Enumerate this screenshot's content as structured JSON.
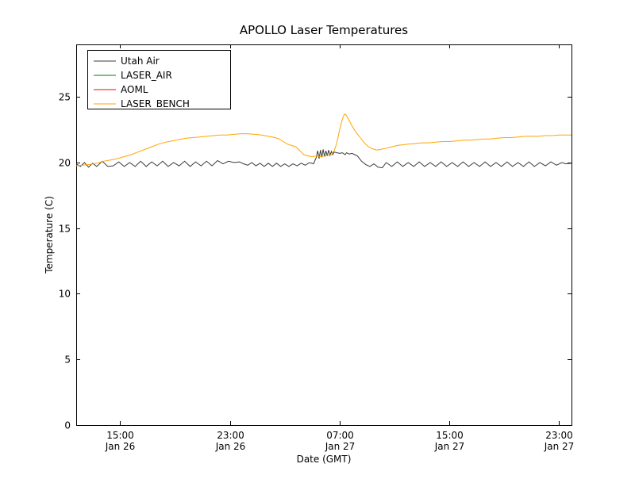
{
  "chart_data": {
    "type": "line",
    "title": "APOLLO Laser Temperatures",
    "xlabel": "Date (GMT)",
    "ylabel": "Temperature (C)",
    "x_unit": "hours since Jan 26 00:00 GMT",
    "xlim": [
      11.8,
      47.9
    ],
    "ylim": [
      0,
      29
    ],
    "grid": false,
    "legend_position": "upper left",
    "x_ticks": [
      {
        "value": 15,
        "time": "15:00",
        "date": "Jan 26"
      },
      {
        "value": 23,
        "time": "23:00",
        "date": "Jan 26"
      },
      {
        "value": 31,
        "time": "07:00",
        "date": "Jan 27"
      },
      {
        "value": 39,
        "time": "15:00",
        "date": "Jan 27"
      },
      {
        "value": 47,
        "time": "23:00",
        "date": "Jan 27"
      }
    ],
    "y_ticks": [
      0,
      5,
      10,
      15,
      20,
      25
    ],
    "series": [
      {
        "name": "Utah Air",
        "color": "#3b3b3b",
        "points": [
          [
            11.8,
            19.9
          ],
          [
            12.1,
            19.7
          ],
          [
            12.4,
            20.0
          ],
          [
            12.7,
            19.65
          ],
          [
            13.0,
            19.95
          ],
          [
            13.3,
            19.7
          ],
          [
            13.7,
            20.1
          ],
          [
            14.1,
            19.7
          ],
          [
            14.5,
            19.75
          ],
          [
            14.9,
            20.05
          ],
          [
            15.3,
            19.7
          ],
          [
            15.7,
            20.0
          ],
          [
            16.1,
            19.7
          ],
          [
            16.5,
            20.1
          ],
          [
            16.9,
            19.7
          ],
          [
            17.3,
            20.05
          ],
          [
            17.7,
            19.75
          ],
          [
            18.1,
            20.1
          ],
          [
            18.5,
            19.7
          ],
          [
            18.9,
            20.0
          ],
          [
            19.3,
            19.75
          ],
          [
            19.7,
            20.1
          ],
          [
            20.1,
            19.7
          ],
          [
            20.5,
            20.05
          ],
          [
            20.9,
            19.75
          ],
          [
            21.3,
            20.1
          ],
          [
            21.7,
            19.75
          ],
          [
            22.1,
            20.15
          ],
          [
            22.5,
            19.9
          ],
          [
            22.9,
            20.1
          ],
          [
            23.3,
            20.0
          ],
          [
            23.7,
            20.05
          ],
          [
            24.0,
            19.9
          ],
          [
            24.3,
            19.8
          ],
          [
            24.6,
            20.0
          ],
          [
            24.9,
            19.75
          ],
          [
            25.2,
            19.95
          ],
          [
            25.5,
            19.7
          ],
          [
            25.8,
            19.95
          ],
          [
            26.1,
            19.7
          ],
          [
            26.4,
            19.95
          ],
          [
            26.7,
            19.7
          ],
          [
            27.0,
            19.9
          ],
          [
            27.3,
            19.7
          ],
          [
            27.6,
            19.9
          ],
          [
            27.9,
            19.75
          ],
          [
            28.2,
            19.95
          ],
          [
            28.5,
            19.8
          ],
          [
            28.8,
            20.0
          ],
          [
            29.1,
            19.9
          ],
          [
            29.3,
            20.4
          ],
          [
            29.4,
            20.9
          ],
          [
            29.5,
            20.3
          ],
          [
            29.6,
            20.95
          ],
          [
            29.7,
            20.4
          ],
          [
            29.8,
            21.0
          ],
          [
            29.9,
            20.45
          ],
          [
            30.0,
            20.9
          ],
          [
            30.1,
            20.5
          ],
          [
            30.2,
            20.95
          ],
          [
            30.3,
            20.55
          ],
          [
            30.4,
            20.85
          ],
          [
            30.5,
            20.6
          ],
          [
            30.6,
            20.8
          ],
          [
            30.8,
            20.75
          ],
          [
            31.0,
            20.7
          ],
          [
            31.2,
            20.75
          ],
          [
            31.4,
            20.6
          ],
          [
            31.5,
            20.75
          ],
          [
            31.7,
            20.65
          ],
          [
            31.9,
            20.7
          ],
          [
            32.1,
            20.6
          ],
          [
            32.3,
            20.5
          ],
          [
            32.6,
            20.1
          ],
          [
            32.9,
            19.85
          ],
          [
            33.2,
            19.7
          ],
          [
            33.5,
            19.9
          ],
          [
            33.8,
            19.65
          ],
          [
            34.1,
            19.6
          ],
          [
            34.4,
            20.0
          ],
          [
            34.8,
            19.7
          ],
          [
            35.2,
            20.05
          ],
          [
            35.6,
            19.7
          ],
          [
            36.0,
            20.0
          ],
          [
            36.4,
            19.7
          ],
          [
            36.8,
            20.05
          ],
          [
            37.2,
            19.7
          ],
          [
            37.6,
            20.0
          ],
          [
            38.0,
            19.7
          ],
          [
            38.4,
            20.05
          ],
          [
            38.8,
            19.7
          ],
          [
            39.2,
            20.0
          ],
          [
            39.6,
            19.7
          ],
          [
            40.0,
            20.05
          ],
          [
            40.4,
            19.7
          ],
          [
            40.8,
            20.0
          ],
          [
            41.2,
            19.7
          ],
          [
            41.6,
            20.05
          ],
          [
            42.0,
            19.7
          ],
          [
            42.4,
            20.0
          ],
          [
            42.8,
            19.7
          ],
          [
            43.2,
            20.05
          ],
          [
            43.6,
            19.7
          ],
          [
            44.0,
            20.0
          ],
          [
            44.4,
            19.7
          ],
          [
            44.8,
            20.05
          ],
          [
            45.2,
            19.7
          ],
          [
            45.6,
            20.0
          ],
          [
            46.0,
            19.75
          ],
          [
            46.4,
            20.05
          ],
          [
            46.8,
            19.8
          ],
          [
            47.2,
            20.0
          ],
          [
            47.5,
            19.9
          ],
          [
            47.9,
            19.95
          ]
        ]
      },
      {
        "name": "LASER_AIR",
        "color": "#007f00",
        "points": []
      },
      {
        "name": "AOML",
        "color": "#ff0000",
        "points": []
      },
      {
        "name": "LASER_BENCH",
        "color": "#ffa500",
        "points": [
          [
            11.8,
            19.75
          ],
          [
            12.3,
            19.8
          ],
          [
            12.8,
            19.85
          ],
          [
            13.3,
            19.95
          ],
          [
            13.8,
            20.1
          ],
          [
            14.3,
            20.2
          ],
          [
            14.8,
            20.3
          ],
          [
            15.3,
            20.45
          ],
          [
            15.8,
            20.6
          ],
          [
            16.3,
            20.8
          ],
          [
            16.8,
            21.0
          ],
          [
            17.3,
            21.2
          ],
          [
            17.8,
            21.4
          ],
          [
            18.3,
            21.55
          ],
          [
            18.8,
            21.65
          ],
          [
            19.3,
            21.75
          ],
          [
            19.8,
            21.85
          ],
          [
            20.3,
            21.9
          ],
          [
            20.8,
            21.95
          ],
          [
            21.3,
            22.0
          ],
          [
            21.8,
            22.05
          ],
          [
            22.3,
            22.1
          ],
          [
            22.8,
            22.1
          ],
          [
            23.3,
            22.15
          ],
          [
            23.8,
            22.2
          ],
          [
            24.3,
            22.2
          ],
          [
            24.8,
            22.15
          ],
          [
            25.3,
            22.1
          ],
          [
            25.8,
            22.0
          ],
          [
            26.3,
            21.9
          ],
          [
            26.6,
            21.8
          ],
          [
            26.9,
            21.6
          ],
          [
            27.2,
            21.4
          ],
          [
            27.5,
            21.3
          ],
          [
            27.8,
            21.2
          ],
          [
            28.1,
            20.9
          ],
          [
            28.4,
            20.6
          ],
          [
            28.7,
            20.5
          ],
          [
            29.0,
            20.45
          ],
          [
            29.3,
            20.5
          ],
          [
            29.6,
            20.45
          ],
          [
            29.9,
            20.5
          ],
          [
            30.2,
            20.55
          ],
          [
            30.4,
            20.6
          ],
          [
            30.6,
            20.9
          ],
          [
            30.8,
            21.5
          ],
          [
            31.0,
            22.5
          ],
          [
            31.2,
            23.3
          ],
          [
            31.35,
            23.7
          ],
          [
            31.5,
            23.6
          ],
          [
            31.7,
            23.2
          ],
          [
            31.9,
            22.8
          ],
          [
            32.2,
            22.3
          ],
          [
            32.5,
            21.9
          ],
          [
            32.8,
            21.5
          ],
          [
            33.1,
            21.2
          ],
          [
            33.4,
            21.05
          ],
          [
            33.7,
            20.95
          ],
          [
            34.0,
            21.0
          ],
          [
            34.4,
            21.1
          ],
          [
            34.8,
            21.2
          ],
          [
            35.2,
            21.3
          ],
          [
            35.6,
            21.35
          ],
          [
            36.0,
            21.4
          ],
          [
            36.5,
            21.45
          ],
          [
            37.0,
            21.5
          ],
          [
            37.5,
            21.5
          ],
          [
            38.0,
            21.55
          ],
          [
            38.5,
            21.6
          ],
          [
            39.0,
            21.6
          ],
          [
            39.5,
            21.65
          ],
          [
            40.0,
            21.7
          ],
          [
            40.5,
            21.7
          ],
          [
            41.0,
            21.75
          ],
          [
            41.5,
            21.8
          ],
          [
            42.0,
            21.8
          ],
          [
            42.5,
            21.85
          ],
          [
            43.0,
            21.9
          ],
          [
            43.5,
            21.9
          ],
          [
            44.0,
            21.95
          ],
          [
            44.5,
            22.0
          ],
          [
            45.0,
            22.0
          ],
          [
            45.5,
            22.0
          ],
          [
            46.0,
            22.05
          ],
          [
            46.5,
            22.05
          ],
          [
            47.0,
            22.1
          ],
          [
            47.5,
            22.1
          ],
          [
            47.9,
            22.1
          ]
        ]
      }
    ]
  }
}
